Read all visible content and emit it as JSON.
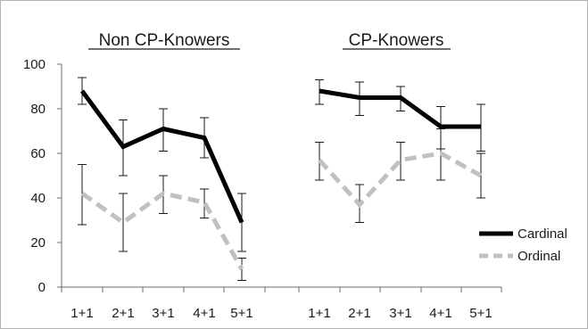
{
  "chart_data": [
    {
      "type": "line",
      "title": "Non CP-Knowers",
      "categories": [
        "1+1",
        "2+1",
        "3+1",
        "4+1",
        "5+1"
      ],
      "ylim": [
        0,
        100
      ],
      "yticks": [
        0,
        20,
        40,
        60,
        80,
        100
      ],
      "grid": false,
      "series": [
        {
          "name": "Cardinal",
          "color": "#000000",
          "dash": "solid",
          "values": [
            88,
            63,
            71,
            67,
            29
          ],
          "error_low": [
            82,
            50,
            61,
            58,
            16
          ],
          "error_high": [
            94,
            75,
            80,
            76,
            42
          ]
        },
        {
          "name": "Ordinal",
          "color": "#c0c0c0",
          "dash": "dashed",
          "values": [
            42,
            29,
            42,
            38,
            8
          ],
          "error_low": [
            28,
            16,
            33,
            31,
            3
          ],
          "error_high": [
            55,
            42,
            50,
            44,
            13
          ]
        }
      ]
    },
    {
      "type": "line",
      "title": "CP-Knowers",
      "categories": [
        "1+1",
        "2+1",
        "3+1",
        "4+1",
        "5+1"
      ],
      "ylim": [
        0,
        100
      ],
      "grid": false,
      "series": [
        {
          "name": "Cardinal",
          "color": "#000000",
          "dash": "solid",
          "values": [
            88,
            85,
            85,
            72,
            72
          ],
          "error_low": [
            82,
            77,
            79,
            62,
            61
          ],
          "error_high": [
            93,
            92,
            90,
            81,
            82
          ]
        },
        {
          "name": "Ordinal",
          "color": "#c0c0c0",
          "dash": "dashed",
          "values": [
            57,
            37,
            57,
            60,
            50
          ],
          "error_low": [
            48,
            29,
            48,
            48,
            40
          ],
          "error_high": [
            65,
            46,
            65,
            71,
            60
          ]
        }
      ]
    }
  ],
  "legend": {
    "placement": "right",
    "items": [
      {
        "label": "Cardinal",
        "color": "#000000",
        "dash": "solid"
      },
      {
        "label": "Ordinal",
        "color": "#c0c0c0",
        "dash": "dashed"
      }
    ]
  }
}
